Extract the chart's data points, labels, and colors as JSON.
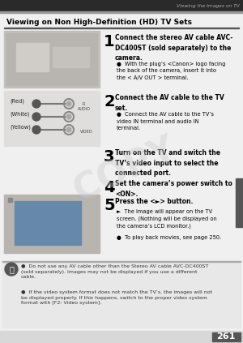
{
  "page_bg": "#f0f0f0",
  "content_bg": "#f0f0f0",
  "header_bg": "#2a2a2a",
  "header_text": "Viewing the Images on TV",
  "header_text_color": "#aaaaaa",
  "section_header_bg": "#888888",
  "section_header_text": "Viewing on Non High-Definition (HD) TV Sets",
  "section_header_text_color": "#000000",
  "step1_bold": "Connect the stereo AV cable AVC-\nDC400ST (sold separately) to the\ncamera.",
  "step1_sub": "With the plug’s <Canon> logo facing\nthe back of the camera, insert it into\nthe < A/V OUT > terminal.",
  "step2_bold": "Connect the AV cable to the TV\nset.",
  "step2_sub": "Connect the AV cable to the TV’s\nvideo IN terminal and audio IN\nterminal.",
  "step3_bold": "Turn on the TV and switch the\nTV’s video input to select the\nconnected port.",
  "step4_bold": "Set the camera’s power switch to\n<ON>.",
  "step5_bold": "Press the <►> button.",
  "step5_sub1": "The image will appear on the TV\nscreen. (Nothing will be displayed on\nthe camera’s LCD monitor.)",
  "step5_sub2": "To play back movies, see page 250.",
  "note1": "Do not use any AV cable other than the Stereo AV cable AVC-DC400ST\n(sold separately). Images may not be displayed if you use a different\ncable.",
  "note2": "If the video system format does not match the TV’s, the images will not\nbe displayed properly. If this happens, switch to the proper video system\nformat with [F2: Video system].",
  "page_num": "261",
  "sidebar_color": "#555555",
  "watermark_text": "COPY"
}
